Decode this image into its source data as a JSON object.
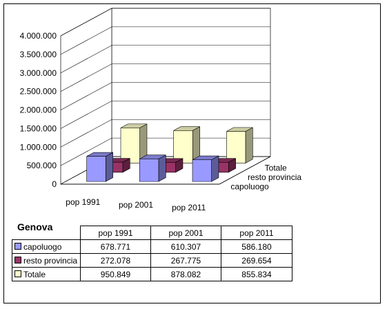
{
  "chart_data": {
    "type": "bar",
    "subtype": "3d-clustered-column",
    "categories": [
      "pop 1991",
      "pop 2001",
      "pop 2011"
    ],
    "series": [
      {
        "name": "capoluogo",
        "values": [
          678771,
          610307,
          586180
        ],
        "color": "#9999FF"
      },
      {
        "name": "resto provincia",
        "values": [
          272078,
          267775,
          269654
        ],
        "color": "#993366"
      },
      {
        "name": "Totale",
        "values": [
          950849,
          878082,
          855834
        ],
        "color": "#FFFFCC"
      }
    ],
    "ylim": [
      0,
      4000000
    ],
    "yticks": [
      "0",
      "500.000",
      "1.000.000",
      "1.500.000",
      "2.000.000",
      "2.500.000",
      "3.000.000",
      "3.500.000",
      "4.000.000"
    ],
    "grid": true
  },
  "table": {
    "title": "Genova",
    "headers": [
      "pop 1991",
      "pop 2001",
      "pop 2011"
    ],
    "rows": [
      {
        "label": "capoluogo",
        "values": [
          "678.771",
          "610.307",
          "586.180"
        ]
      },
      {
        "label": "resto provincia",
        "values": [
          "272.078",
          "267.775",
          "269.654"
        ]
      },
      {
        "label": "Totale",
        "values": [
          "950.849",
          "878.082",
          "855.834"
        ]
      }
    ]
  }
}
